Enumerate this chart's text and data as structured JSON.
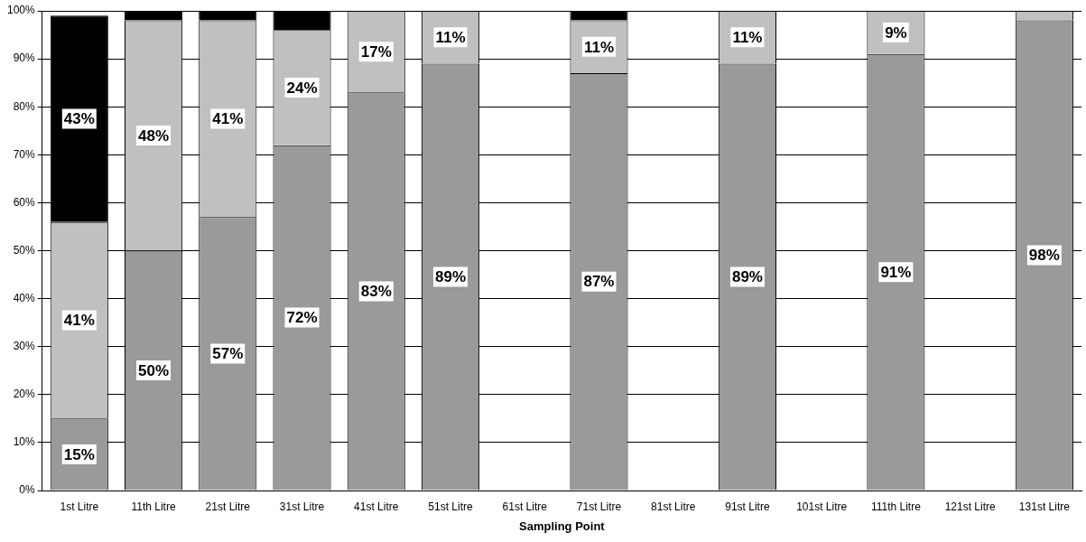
{
  "chart_data": {
    "type": "bar",
    "stacked": true,
    "xlabel": "Sampling Point",
    "categories": [
      "1st Litre",
      "11th Litre",
      "21st Litre",
      "31st Litre",
      "41st Litre",
      "51st Litre",
      "61st Litre",
      "71st Litre",
      "81st Litre",
      "91st Litre",
      "101st Litre",
      "111th Litre",
      "121st Litre",
      "131st Litre"
    ],
    "series": [
      {
        "color": "#9a9a9a",
        "values": [
          15,
          50,
          57,
          72,
          83,
          89,
          null,
          87,
          null,
          89,
          null,
          91,
          null,
          98
        ],
        "value_labels": [
          "15%",
          "50%",
          "57%",
          "72%",
          "83%",
          "89%",
          null,
          "87%",
          null,
          "89%",
          null,
          "91%",
          null,
          "98%"
        ]
      },
      {
        "color": "#c0c0c0",
        "values": [
          41,
          48,
          41,
          24,
          17,
          11,
          null,
          11,
          null,
          11,
          null,
          9,
          null,
          2
        ],
        "value_labels": [
          "41%",
          "48%",
          "41%",
          "24%",
          "17%",
          "11%",
          null,
          "11%",
          null,
          "11%",
          null,
          "9%",
          null,
          null
        ]
      },
      {
        "color": "#000000",
        "values": [
          43,
          2,
          2,
          4,
          null,
          null,
          null,
          2,
          null,
          null,
          null,
          null,
          null,
          null
        ],
        "value_labels": [
          "43%",
          null,
          null,
          null,
          null,
          null,
          null,
          null,
          null,
          null,
          null,
          null,
          null,
          null
        ]
      }
    ],
    "ylim": [
      0,
      100
    ],
    "yticks": [
      {
        "value": 0,
        "label": "0%"
      },
      {
        "value": 10,
        "label": "10%"
      },
      {
        "value": 20,
        "label": "20%"
      },
      {
        "value": 30,
        "label": "30%"
      },
      {
        "value": 40,
        "label": "40%"
      },
      {
        "value": 50,
        "label": "50%"
      },
      {
        "value": 60,
        "label": "60%"
      },
      {
        "value": 70,
        "label": "70%"
      },
      {
        "value": 80,
        "label": "80%"
      },
      {
        "value": 90,
        "label": "90%"
      },
      {
        "value": 100,
        "label": "100%"
      }
    ],
    "grid": "y",
    "legend": false
  }
}
